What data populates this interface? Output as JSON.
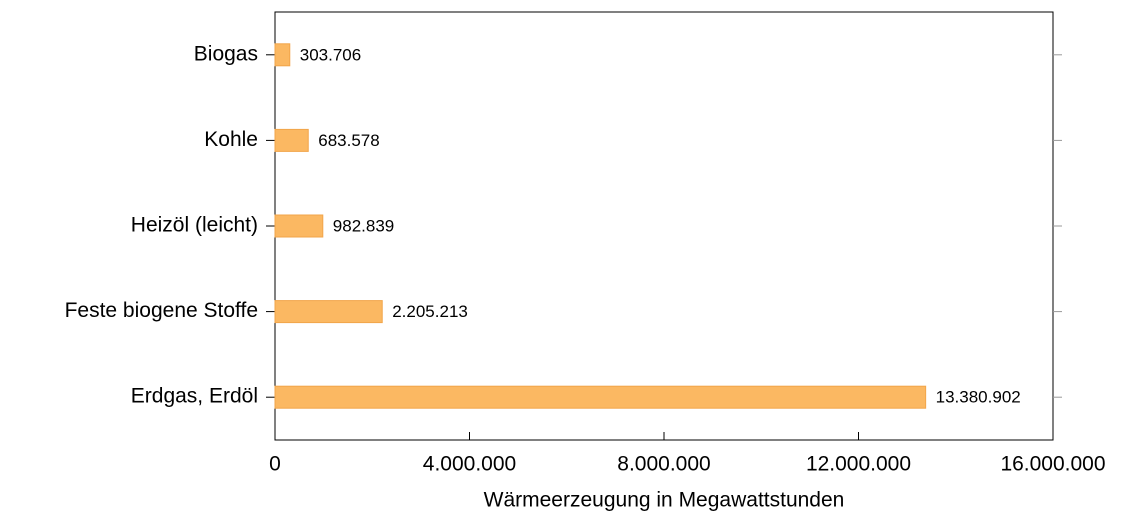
{
  "chart_data": {
    "type": "bar",
    "orientation": "horizontal",
    "x_label": "Wärmeerzeugung in Megawattstunden",
    "categories": [
      "Biogas",
      "Kohle",
      "Heizöl (leicht)",
      "Feste biogene Stoffe",
      "Erdgas, Erdöl"
    ],
    "values": [
      303706,
      683578,
      982839,
      2205213,
      13380902
    ],
    "value_labels": [
      "303.706",
      "683.578",
      "982.839",
      "2.205.213",
      "13.380.902"
    ],
    "color": "#fbb862",
    "xlim": [
      0,
      16000000
    ],
    "xticks": [
      0,
      {
        "value": 4000000,
        "label": "4.000.000"
      },
      {
        "value": 8000000,
        "label": "8.000.000"
      },
      {
        "value": 12000000,
        "label": "12.000.000"
      },
      {
        "value": 16000000,
        "label": "16.000.000"
      }
    ]
  }
}
